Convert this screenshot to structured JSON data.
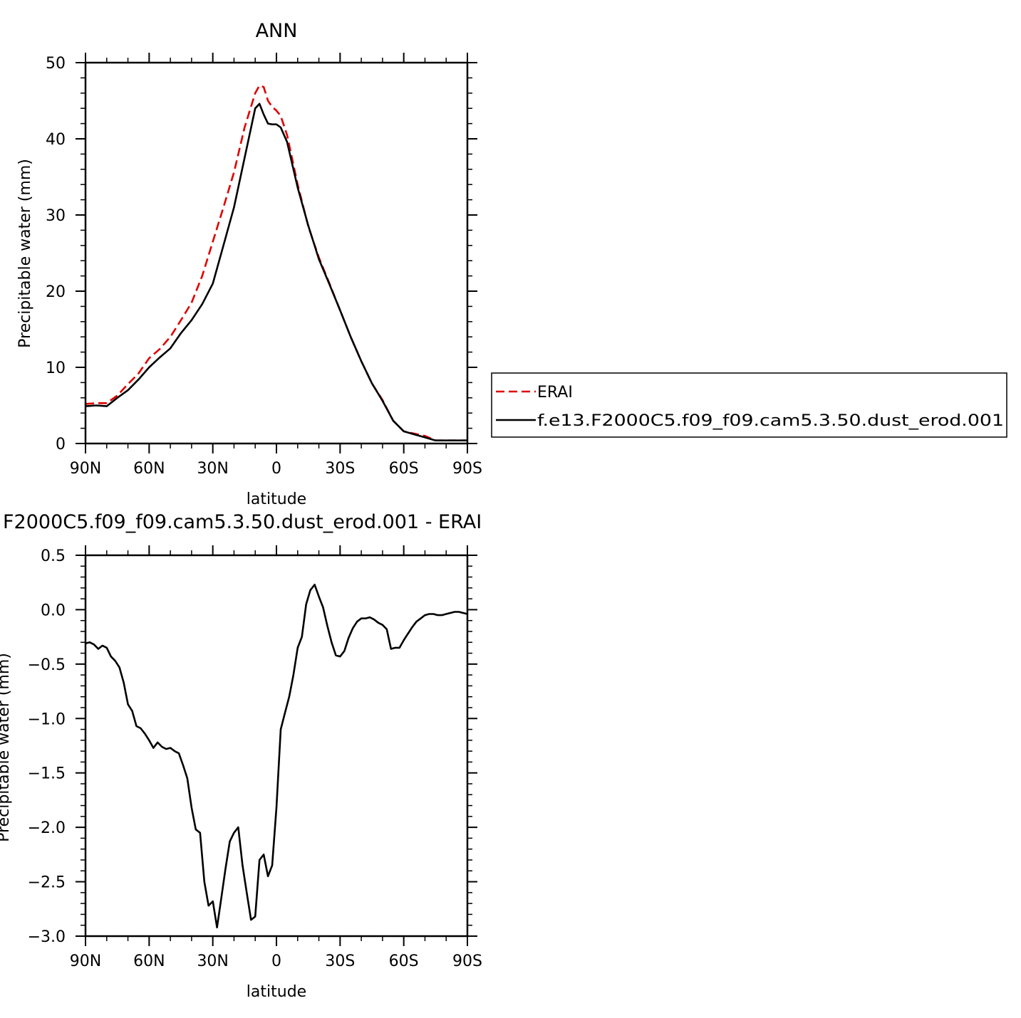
{
  "chart_data": [
    {
      "type": "line",
      "title": "ANN",
      "xlabel": "latitude",
      "ylabel": "Precipitable water (mm)",
      "xlim": [
        90,
        -90
      ],
      "ylim": [
        0,
        50
      ],
      "x_tick_labels": [
        "90N",
        "60N",
        "30N",
        "0",
        "30S",
        "60S",
        "90S"
      ],
      "x_tick_values": [
        90,
        60,
        30,
        0,
        -30,
        -60,
        -90
      ],
      "y_tick_labels": [
        "0",
        "10",
        "20",
        "30",
        "40",
        "50"
      ],
      "y_tick_values": [
        0,
        10,
        20,
        30,
        40,
        50
      ],
      "grid": false,
      "legend_position": "right",
      "series": [
        {
          "name": "ERAI",
          "color": "#e00000",
          "dash": true,
          "x": [
            90,
            85,
            80,
            75,
            70,
            65,
            60,
            55,
            50,
            45,
            40,
            35,
            30,
            25,
            20,
            15,
            10,
            8,
            6,
            4,
            2,
            0,
            -2,
            -5,
            -10,
            -15,
            -20,
            -25,
            -30,
            -35,
            -40,
            -45,
            -50,
            -55,
            -60,
            -65,
            -70,
            -75,
            -80,
            -85,
            -90
          ],
          "y": [
            5.2,
            5.3,
            5.3,
            6.3,
            7.8,
            9.2,
            11.2,
            12.4,
            14.0,
            16.2,
            18.5,
            22.0,
            26.5,
            31.0,
            35.6,
            41.5,
            46.0,
            47.0,
            46.8,
            45.0,
            44.2,
            43.7,
            43.0,
            40.5,
            34.0,
            28.5,
            24.4,
            21.0,
            17.5,
            14.0,
            10.8,
            7.9,
            5.7,
            3.0,
            1.6,
            1.3,
            1.0,
            0.4,
            0.4,
            0.4,
            0.4
          ]
        },
        {
          "name": "f.e13.F2000C5.f09_f09.cam5.3.50.dust_erod.001",
          "color": "#000000",
          "dash": false,
          "x": [
            90,
            85,
            80,
            75,
            70,
            65,
            60,
            55,
            50,
            45,
            40,
            35,
            30,
            25,
            20,
            15,
            10,
            8,
            6,
            4,
            2,
            0,
            -2,
            -5,
            -10,
            -15,
            -20,
            -25,
            -30,
            -35,
            -40,
            -45,
            -50,
            -55,
            -60,
            -65,
            -70,
            -75,
            -80,
            -85,
            -90
          ],
          "y": [
            4.9,
            5.0,
            4.9,
            6.0,
            7.0,
            8.4,
            10.0,
            11.3,
            12.5,
            14.5,
            16.2,
            18.3,
            21.0,
            26.0,
            31.0,
            37.5,
            44.0,
            44.6,
            43.2,
            42.0,
            41.9,
            41.9,
            41.5,
            39.6,
            33.6,
            28.6,
            24.2,
            20.9,
            17.5,
            14.0,
            10.8,
            7.9,
            5.6,
            3.0,
            1.6,
            1.2,
            0.8,
            0.4,
            0.4,
            0.4,
            0.4
          ]
        }
      ]
    },
    {
      "type": "line",
      "title": "F2000C5.f09_f09.cam5.3.50.dust_erod.001 - ERAI",
      "xlabel": "latitude",
      "ylabel": "Precipitable water (mm)",
      "xlim": [
        90,
        -90
      ],
      "ylim": [
        -3.0,
        0.5
      ],
      "x_tick_labels": [
        "90N",
        "60N",
        "30N",
        "0",
        "30S",
        "60S",
        "90S"
      ],
      "x_tick_values": [
        90,
        60,
        30,
        0,
        -30,
        -60,
        -90
      ],
      "y_tick_labels": [
        "0.5",
        "0.0",
        "−0.5",
        "−1.0",
        "−1.5",
        "−2.0",
        "−2.5",
        "−3.0"
      ],
      "y_tick_values": [
        0.5,
        0.0,
        -0.5,
        -1.0,
        -1.5,
        -2.0,
        -2.5,
        -3.0
      ],
      "grid": false,
      "series": [
        {
          "name": "",
          "color": "#000000",
          "dash": false,
          "x": [
            90,
            88,
            86,
            84,
            82,
            80,
            78,
            76,
            74,
            72,
            70,
            68,
            66,
            64,
            62,
            60,
            58,
            56,
            54,
            52,
            50,
            48,
            46,
            44,
            42,
            40,
            38,
            36,
            34,
            32,
            30,
            28,
            26,
            24,
            22,
            20,
            18,
            16,
            14,
            12,
            10,
            8,
            6,
            4,
            2,
            0,
            -2,
            -4,
            -6,
            -8,
            -10,
            -12,
            -14,
            -16,
            -18,
            -20,
            -22,
            -24,
            -26,
            -28,
            -30,
            -32,
            -34,
            -36,
            -38,
            -40,
            -42,
            -44,
            -46,
            -48,
            -50,
            -52,
            -54,
            -56,
            -58,
            -60,
            -62,
            -64,
            -66,
            -68,
            -70,
            -72,
            -74,
            -76,
            -78,
            -80,
            -82,
            -84,
            -86,
            -88,
            -90
          ],
          "y": [
            -0.31,
            -0.3,
            -0.32,
            -0.36,
            -0.33,
            -0.35,
            -0.43,
            -0.47,
            -0.53,
            -0.67,
            -0.87,
            -0.93,
            -1.07,
            -1.09,
            -1.14,
            -1.2,
            -1.27,
            -1.22,
            -1.26,
            -1.28,
            -1.27,
            -1.3,
            -1.32,
            -1.43,
            -1.55,
            -1.82,
            -2.02,
            -2.05,
            -2.5,
            -2.72,
            -2.68,
            -2.92,
            -2.65,
            -2.38,
            -2.13,
            -2.05,
            -2.0,
            -2.35,
            -2.6,
            -2.85,
            -2.82,
            -2.3,
            -2.25,
            -2.45,
            -2.35,
            -1.82,
            -1.1,
            -0.95,
            -0.8,
            -0.6,
            -0.35,
            -0.25,
            0.05,
            0.18,
            0.23,
            0.12,
            0.02,
            -0.15,
            -0.3,
            -0.42,
            -0.43,
            -0.38,
            -0.26,
            -0.17,
            -0.11,
            -0.08,
            -0.08,
            -0.07,
            -0.09,
            -0.12,
            -0.14,
            -0.18,
            -0.36,
            -0.35,
            -0.35,
            -0.28,
            -0.22,
            -0.16,
            -0.11,
            -0.08,
            -0.05,
            -0.04,
            -0.04,
            -0.05,
            -0.05,
            -0.04,
            -0.03,
            -0.02,
            -0.02,
            -0.03,
            -0.04
          ]
        }
      ]
    }
  ]
}
